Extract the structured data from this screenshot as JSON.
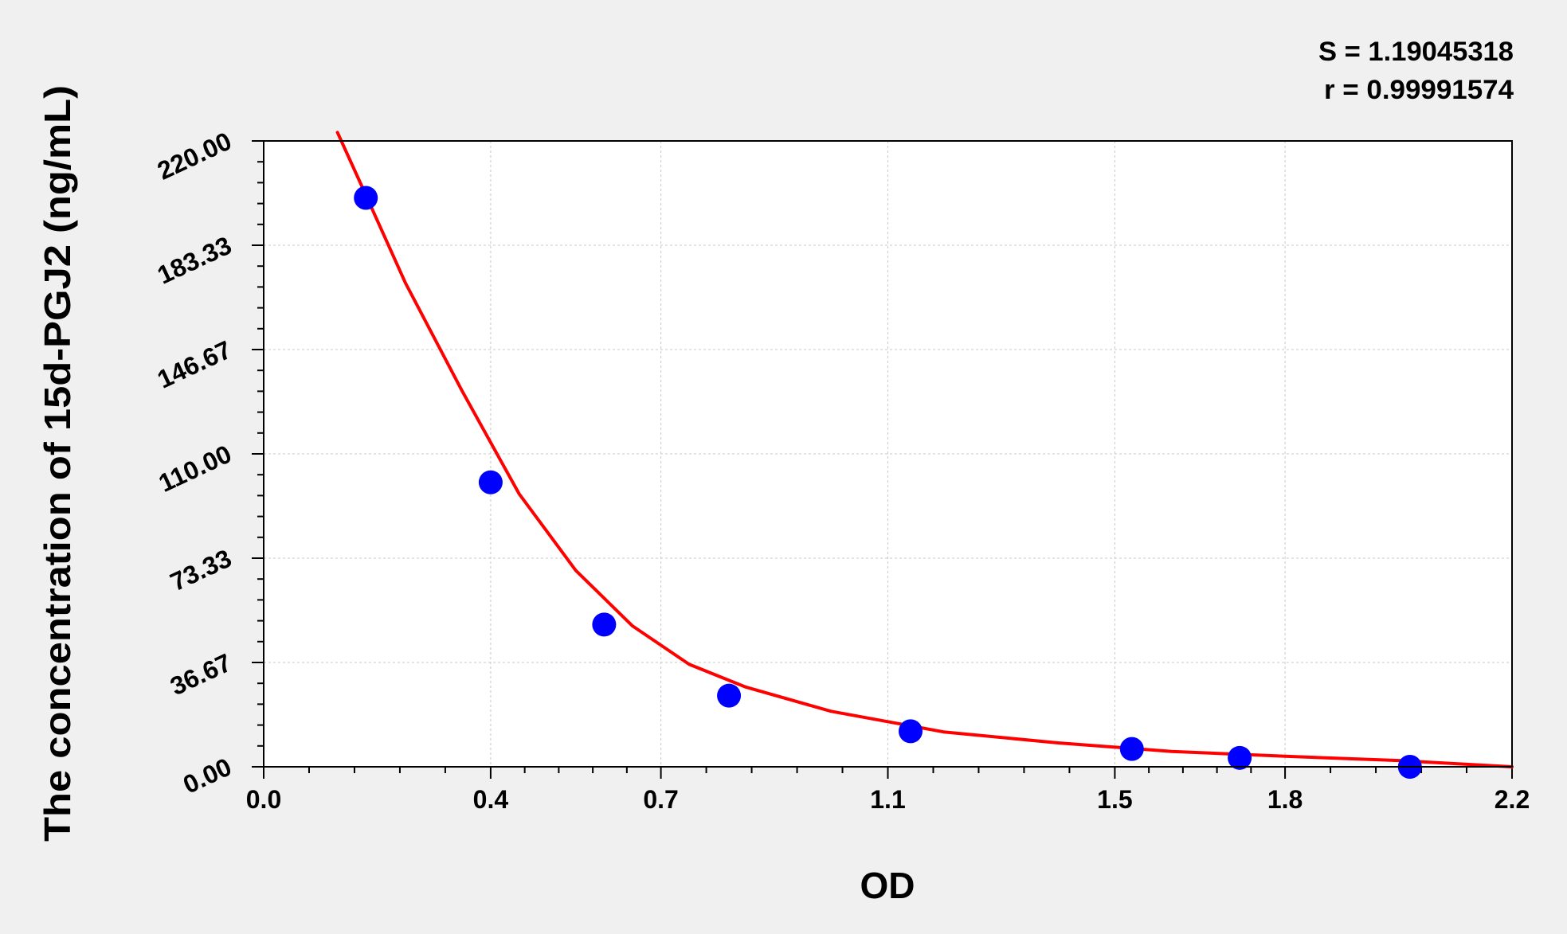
{
  "chart_data": {
    "type": "scatter",
    "stats": {
      "s_text": "S = 1.19045318",
      "r_text": "r = 0.99991574"
    },
    "xlabel": "OD",
    "ylabel": "The concentration of 15d-PGJ2 (ng/mL)",
    "xlim": [
      0.0,
      2.2
    ],
    "ylim": [
      0.0,
      220.0
    ],
    "x_ticks": [
      0.0,
      0.4,
      0.7,
      1.1,
      1.5,
      1.8,
      2.2
    ],
    "x_tick_labels": [
      "0.0",
      "0.4",
      "0.7",
      "1.1",
      "1.5",
      "1.8",
      "2.2"
    ],
    "y_ticks": [
      0.0,
      36.67,
      73.33,
      110.0,
      146.67,
      183.33,
      220.0
    ],
    "y_tick_labels": [
      "0.00",
      "36.67",
      "73.33",
      "110.00",
      "146.67",
      "183.33",
      "220.00"
    ],
    "grid": true,
    "series": [
      {
        "type": "scatter",
        "color": "#0000ff",
        "x": [
          0.18,
          0.4,
          0.6,
          0.82,
          1.14,
          1.53,
          1.72,
          2.02
        ],
        "y": [
          200,
          100,
          50,
          25,
          12.5,
          6.25,
          3.13,
          0
        ]
      },
      {
        "type": "line",
        "color": "#ff0000",
        "x": [
          0.13,
          0.18,
          0.25,
          0.35,
          0.45,
          0.55,
          0.65,
          0.75,
          0.85,
          1.0,
          1.2,
          1.4,
          1.6,
          1.8,
          2.0,
          2.2
        ],
        "y": [
          223,
          201,
          170,
          132,
          96,
          69,
          49.5,
          36,
          28,
          19.5,
          12.2,
          8.4,
          5.4,
          3.7,
          2.2,
          0
        ]
      }
    ]
  }
}
